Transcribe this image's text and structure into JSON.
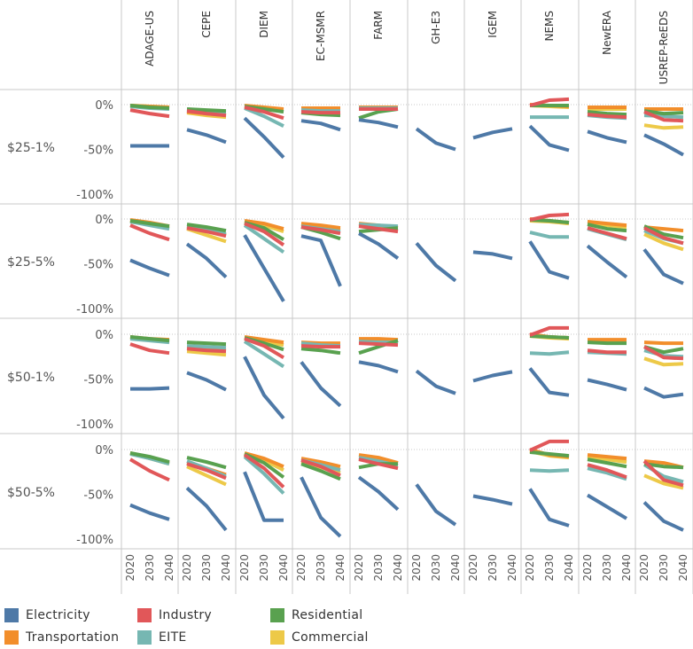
{
  "chart_data": {
    "type": "line",
    "title": "",
    "models": [
      "ADAGE-US",
      "CEPE",
      "DIEM",
      "EC-MSMR",
      "FARM",
      "GH-E3",
      "IGEM",
      "NEMS",
      "NewERA",
      "USREP-ReEDS"
    ],
    "scenarios": [
      "$25-1%",
      "$25-5%",
      "$50-1%",
      "$50-5%"
    ],
    "x": [
      2020,
      2030,
      2040
    ],
    "x_tick_labels": [
      "2020",
      "2030",
      "2040"
    ],
    "y_tick_labels": [
      "0%",
      "-50%",
      "-100%"
    ],
    "ylim": [
      -105,
      10
    ],
    "colors": {
      "Electricity": "#4e79a7",
      "Transportation": "#f28e2b",
      "Industry": "#e15759",
      "Residential": "#59a14f",
      "EITE": "#76b7b2",
      "Commercial": "#edc948"
    },
    "legend": [
      "Electricity",
      "Industry",
      "Residential",
      "Transportation",
      "EITE",
      "Commercial"
    ],
    "panels": {
      "$25-1%": {
        "ADAGE-US": {
          "Electricity": [
            -46,
            -46,
            -46
          ],
          "Industry": [
            -6,
            -10,
            -13
          ],
          "Residential": [
            -1,
            -3,
            -4
          ],
          "Transportation": [
            -1,
            -2,
            -3
          ],
          "EITE": [
            -2,
            -4,
            -5
          ],
          "Commercial": [
            -1,
            -2,
            -3
          ]
        },
        "CEPE": {
          "Electricity": [
            -28,
            -34,
            -42
          ],
          "Industry": [
            -7,
            -10,
            -12
          ],
          "Residential": [
            -5,
            -6,
            -7
          ],
          "Transportation": [
            -8,
            -10,
            -12
          ],
          "EITE": [
            -6,
            -8,
            -9
          ],
          "Commercial": [
            -9,
            -12,
            -14
          ]
        },
        "DIEM": {
          "Electricity": [
            -15,
            -36,
            -59
          ],
          "Industry": [
            -3,
            -8,
            -15
          ],
          "Residential": [
            -2,
            -5,
            -8
          ],
          "Transportation": [
            -1,
            -3,
            -5
          ],
          "EITE": [
            -4,
            -13,
            -24
          ],
          "Commercial": [
            -2,
            -4,
            -6
          ]
        },
        "EC-MSMR": {
          "Electricity": [
            -18,
            -21,
            -28
          ],
          "Industry": [
            -8,
            -9,
            -9
          ],
          "Residential": [
            -9,
            -11,
            -12
          ],
          "Transportation": [
            -4,
            -4,
            -4
          ],
          "EITE": [
            -6,
            -7,
            -7
          ],
          "Commercial": [
            -5,
            -5,
            -5
          ]
        },
        "FARM": {
          "Electricity": [
            -17,
            -20,
            -25
          ],
          "Industry": [
            -5,
            -5,
            -5
          ],
          "Residential": [
            -15,
            -8,
            -5
          ],
          "Transportation": [
            -3,
            -3,
            -3
          ],
          "EITE": [
            -4,
            -4,
            -4
          ],
          "Commercial": [
            -5,
            -5,
            -5
          ]
        },
        "GH-E3": {
          "Electricity": [
            -27,
            -43,
            -50
          ]
        },
        "IGEM": {
          "Electricity": [
            -37,
            -31,
            -27
          ]
        },
        "NEMS": {
          "Electricity": [
            -24,
            -45,
            -51
          ],
          "Industry": [
            -1,
            5,
            6
          ],
          "Residential": [
            -1,
            -1,
            -1
          ],
          "Transportation": [
            0,
            -1,
            -2
          ],
          "EITE": [
            -14,
            -14,
            -14
          ],
          "Commercial": [
            -1,
            -2,
            -3
          ]
        },
        "NewERA": {
          "Electricity": [
            -30,
            -37,
            -42
          ],
          "Industry": [
            -11,
            -13,
            -14
          ],
          "Residential": [
            -8,
            -10,
            -11
          ],
          "Transportation": [
            -3,
            -3,
            -3
          ],
          "EITE": [
            -12,
            -14,
            -15
          ],
          "Commercial": [
            -5,
            -5,
            -5
          ]
        },
        "USREP-ReEDS": {
          "Electricity": [
            -34,
            -44,
            -56
          ],
          "Industry": [
            -8,
            -17,
            -18
          ],
          "Residential": [
            -7,
            -10,
            -9
          ],
          "Transportation": [
            -5,
            -5,
            -5
          ],
          "EITE": [
            -12,
            -13,
            -14
          ],
          "Commercial": [
            -23,
            -26,
            -25
          ]
        }
      },
      "$25-5%": {
        "ADAGE-US": {
          "Electricity": [
            -46,
            -55,
            -63
          ],
          "Industry": [
            -7,
            -16,
            -23
          ],
          "Residential": [
            -2,
            -5,
            -8
          ],
          "Transportation": [
            -1,
            -4,
            -8
          ],
          "EITE": [
            -3,
            -7,
            -11
          ],
          "Commercial": [
            -2,
            -6,
            -10
          ]
        },
        "CEPE": {
          "Electricity": [
            -28,
            -44,
            -65
          ],
          "Industry": [
            -10,
            -14,
            -19
          ],
          "Residential": [
            -6,
            -9,
            -13
          ],
          "Transportation": [
            -9,
            -13,
            -18
          ],
          "EITE": [
            -8,
            -12,
            -17
          ],
          "Commercial": [
            -11,
            -18,
            -25
          ]
        },
        "DIEM": {
          "Electricity": [
            -18,
            -55,
            -92
          ],
          "Industry": [
            -5,
            -14,
            -29
          ],
          "Residential": [
            -4,
            -10,
            -23
          ],
          "Transportation": [
            -2,
            -5,
            -11
          ],
          "EITE": [
            -7,
            -22,
            -37
          ],
          "Commercial": [
            -3,
            -7,
            -14
          ]
        },
        "EC-MSMR": {
          "Electricity": [
            -19,
            -24,
            -75
          ],
          "Industry": [
            -9,
            -12,
            -16
          ],
          "Residential": [
            -9,
            -15,
            -22
          ],
          "Transportation": [
            -5,
            -7,
            -10
          ],
          "EITE": [
            -8,
            -11,
            -14
          ],
          "Commercial": [
            -6,
            -9,
            -12
          ]
        },
        "FARM": {
          "Electricity": [
            -16,
            -28,
            -44
          ],
          "Industry": [
            -8,
            -11,
            -14
          ],
          "Residential": [
            -14,
            -12,
            -10
          ],
          "Transportation": [
            -5,
            -7,
            -10
          ],
          "EITE": [
            -6,
            -7,
            -8
          ],
          "Commercial": [
            -6,
            -8,
            -9
          ]
        },
        "GH-E3": {
          "Electricity": [
            -27,
            -52,
            -69
          ]
        },
        "IGEM": {
          "Electricity": [
            -37,
            -39,
            -44
          ]
        },
        "NEMS": {
          "Electricity": [
            -25,
            -59,
            -66
          ],
          "Industry": [
            -1,
            4,
            5
          ],
          "Residential": [
            -1,
            -2,
            -4
          ],
          "Transportation": [
            0,
            -2,
            -4
          ],
          "EITE": [
            -15,
            -20,
            -20
          ],
          "Commercial": [
            -2,
            -3,
            -5
          ]
        },
        "NewERA": {
          "Electricity": [
            -30,
            -48,
            -65
          ],
          "Industry": [
            -10,
            -16,
            -22
          ],
          "Residential": [
            -6,
            -11,
            -13
          ],
          "Transportation": [
            -3,
            -5,
            -7
          ],
          "EITE": [
            -11,
            -17,
            -23
          ],
          "Commercial": [
            -5,
            -7,
            -9
          ]
        },
        "USREP-ReEDS": {
          "Electricity": [
            -34,
            -62,
            -72
          ],
          "Industry": [
            -10,
            -21,
            -27
          ],
          "Residential": [
            -8,
            -17,
            -21
          ],
          "Transportation": [
            -9,
            -11,
            -13
          ],
          "EITE": [
            -13,
            -22,
            -27
          ],
          "Commercial": [
            -17,
            -27,
            -34
          ]
        }
      },
      "$50-1%": {
        "ADAGE-US": {
          "Electricity": [
            -61,
            -61,
            -60
          ],
          "Industry": [
            -11,
            -18,
            -21
          ],
          "Residential": [
            -3,
            -5,
            -7
          ],
          "Transportation": [
            -3,
            -5,
            -6
          ],
          "EITE": [
            -5,
            -7,
            -9
          ],
          "Commercial": [
            -4,
            -6,
            -8
          ]
        },
        "CEPE": {
          "Electricity": [
            -43,
            -51,
            -62
          ],
          "Industry": [
            -16,
            -18,
            -19
          ],
          "Residential": [
            -9,
            -10,
            -11
          ],
          "Transportation": [
            -15,
            -16,
            -18
          ],
          "EITE": [
            -13,
            -14,
            -15
          ],
          "Commercial": [
            -19,
            -21,
            -23
          ]
        },
        "DIEM": {
          "Electricity": [
            -25,
            -68,
            -94
          ],
          "Industry": [
            -5,
            -13,
            -26
          ],
          "Residential": [
            -4,
            -10,
            -17
          ],
          "Transportation": [
            -3,
            -6,
            -9
          ],
          "EITE": [
            -8,
            -22,
            -36
          ],
          "Commercial": [
            -4,
            -8,
            -12
          ]
        },
        "EC-MSMR": {
          "Electricity": [
            -31,
            -60,
            -80
          ],
          "Industry": [
            -13,
            -14,
            -14
          ],
          "Residential": [
            -16,
            -18,
            -21
          ],
          "Transportation": [
            -9,
            -10,
            -10
          ],
          "EITE": [
            -10,
            -12,
            -13
          ],
          "Commercial": [
            -12,
            -13,
            -13
          ]
        },
        "FARM": {
          "Electricity": [
            -31,
            -35,
            -42
          ],
          "Industry": [
            -10,
            -11,
            -12
          ],
          "Residential": [
            -21,
            -14,
            -7
          ],
          "Transportation": [
            -5,
            -5,
            -6
          ],
          "EITE": [
            -8,
            -9,
            -9
          ],
          "Commercial": [
            -9,
            -9,
            -10
          ]
        },
        "GH-E3": {
          "Electricity": [
            -41,
            -58,
            -66
          ]
        },
        "IGEM": {
          "Electricity": [
            -52,
            -46,
            -42
          ]
        },
        "NEMS": {
          "Electricity": [
            -38,
            -65,
            -68
          ],
          "Industry": [
            -1,
            7,
            7
          ],
          "Residential": [
            -2,
            -3,
            -4
          ],
          "Transportation": [
            0,
            -3,
            -4
          ],
          "EITE": [
            -21,
            -22,
            -20
          ],
          "Commercial": [
            -2,
            -4,
            -5
          ]
        },
        "NewERA": {
          "Electricity": [
            -51,
            -56,
            -62
          ],
          "Industry": [
            -18,
            -20,
            -20
          ],
          "Residential": [
            -9,
            -10,
            -10
          ],
          "Transportation": [
            -6,
            -6,
            -6
          ],
          "EITE": [
            -20,
            -21,
            -22
          ],
          "Commercial": [
            -8,
            -8,
            -8
          ]
        },
        "USREP-ReEDS": {
          "Electricity": [
            -60,
            -70,
            -67
          ],
          "Industry": [
            -14,
            -26,
            -27
          ],
          "Residential": [
            -14,
            -20,
            -16
          ],
          "Transportation": [
            -9,
            -10,
            -10
          ],
          "EITE": [
            -18,
            -24,
            -25
          ],
          "Commercial": [
            -27,
            -34,
            -33
          ]
        }
      },
      "$50-5%": {
        "ADAGE-US": {
          "Electricity": [
            -62,
            -71,
            -78
          ],
          "Industry": [
            -11,
            -24,
            -34
          ],
          "Residential": [
            -4,
            -8,
            -14
          ],
          "Transportation": [
            -4,
            -9,
            -15
          ],
          "EITE": [
            -5,
            -10,
            -16
          ],
          "Commercial": [
            -4,
            -10,
            -16
          ]
        },
        "CEPE": {
          "Electricity": [
            -43,
            -63,
            -90
          ],
          "Industry": [
            -16,
            -23,
            -32
          ],
          "Residential": [
            -9,
            -14,
            -20
          ],
          "Transportation": [
            -15,
            -21,
            -28
          ],
          "EITE": [
            -13,
            -21,
            -30
          ],
          "Commercial": [
            -19,
            -29,
            -39
          ]
        },
        "DIEM": {
          "Electricity": [
            -25,
            -79,
            -79
          ],
          "Industry": [
            -6,
            -21,
            -42
          ],
          "Residential": [
            -5,
            -15,
            -31
          ],
          "Transportation": [
            -4,
            -10,
            -19
          ],
          "EITE": [
            -8,
            -27,
            -49
          ],
          "Commercial": [
            -4,
            -12,
            -23
          ]
        },
        "EC-MSMR": {
          "Electricity": [
            -31,
            -76,
            -97
          ],
          "Industry": [
            -12,
            -19,
            -29
          ],
          "Residential": [
            -16,
            -24,
            -33
          ],
          "Transportation": [
            -10,
            -14,
            -19
          ],
          "EITE": [
            -12,
            -17,
            -23
          ],
          "Commercial": [
            -14,
            -20,
            -26
          ]
        },
        "FARM": {
          "Electricity": [
            -31,
            -47,
            -67
          ],
          "Industry": [
            -11,
            -16,
            -21
          ],
          "Residential": [
            -20,
            -16,
            -16
          ],
          "Transportation": [
            -6,
            -9,
            -15
          ],
          "EITE": [
            -9,
            -13,
            -18
          ],
          "Commercial": [
            -10,
            -13,
            -16
          ]
        },
        "GH-E3": {
          "Electricity": [
            -39,
            -69,
            -84
          ]
        },
        "IGEM": {
          "Electricity": [
            -52,
            -56,
            -61
          ]
        },
        "NEMS": {
          "Electricity": [
            -44,
            -78,
            -85
          ],
          "Industry": [
            -1,
            9,
            9
          ],
          "Residential": [
            -3,
            -5,
            -7
          ],
          "Transportation": [
            0,
            -6,
            -8
          ],
          "EITE": [
            -23,
            -24,
            -23
          ],
          "Commercial": [
            -2,
            -7,
            -9
          ]
        },
        "NewERA": {
          "Electricity": [
            -51,
            -64,
            -77
          ],
          "Industry": [
            -17,
            -23,
            -31
          ],
          "Residential": [
            -11,
            -15,
            -19
          ],
          "Transportation": [
            -6,
            -8,
            -10
          ],
          "EITE": [
            -21,
            -26,
            -33
          ],
          "Commercial": [
            -8,
            -11,
            -14
          ]
        },
        "USREP-ReEDS": {
          "Electricity": [
            -59,
            -80,
            -90
          ],
          "Industry": [
            -13,
            -34,
            -40
          ],
          "Residential": [
            -16,
            -19,
            -20
          ],
          "Transportation": [
            -13,
            -15,
            -20
          ],
          "EITE": [
            -17,
            -30,
            -36
          ],
          "Commercial": [
            -29,
            -38,
            -43
          ]
        }
      }
    }
  }
}
